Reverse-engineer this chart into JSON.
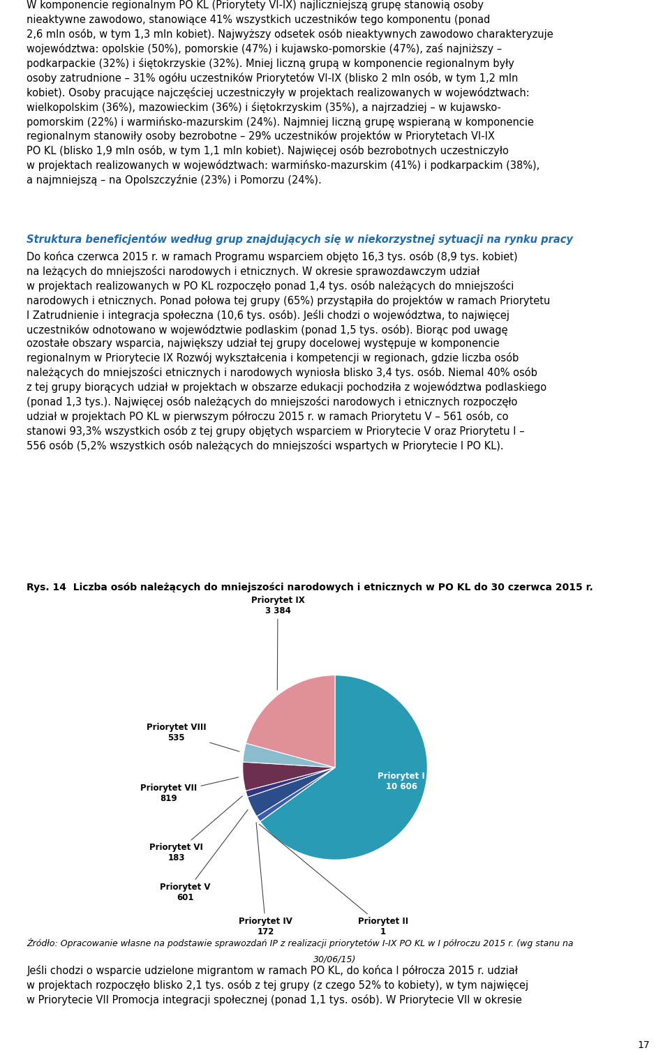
{
  "title": "Rys. 14  Liczba osób należących do mniejszości narodowych i etnicznych w PO KL do 30 czerwca 2015 r.",
  "source_line1": "Źródło: Opracowanie własne na podstawie sprawozdań IP z realizacji priorytetów I-IX PO KL w I półroczu 2015 r. (wg stanu na",
  "source_line2": "30/06/15)",
  "slices": [
    {
      "label": "Priorytet I",
      "value": 10606,
      "color": "#2A9BB5"
    },
    {
      "label": "Priorytet II",
      "value": 1,
      "color": "#D9611E"
    },
    {
      "label": "Priorytet IV",
      "value": 172,
      "color": "#3A5BAF"
    },
    {
      "label": "Priorytet V",
      "value": 601,
      "color": "#2B4D8A"
    },
    {
      "label": "Priorytet VI",
      "value": 183,
      "color": "#353480"
    },
    {
      "label": "Priorytet VII",
      "value": 819,
      "color": "#6B3050"
    },
    {
      "label": "Priorytet VIII",
      "value": 535,
      "color": "#8BBCCE"
    },
    {
      "label": "Priorytet IX",
      "value": 3384,
      "color": "#E09098"
    }
  ],
  "para1": "W komponencie regionalnym PO KL (Priorytety VI-IX) najliczniejszą grupę stanowią osoby\nnieaktywne zawodowo, stanowiące 41% wszystkich uczestników tego komponentu (ponad\n2,6 mln osób, w tym 1,3 mln kobiet). Najwyższy odsetek osób nieaktywnych zawodowo charakteryzuje\nwojewództwa: opolskie (50%), pomorskie (47%) i kujawsko-pomorskie (47%), zaś najniższy –\npodkarpackie (32%) i śiętokrzyskie (32%). Mniej liczną grupą w komponencie regionalnym były\nosoby zatrudnione – 31% ogółu uczestników Priorytetów VI-IX (blisko 2 mln osób, w tym 1,2 mln\nkobiet). Osoby pracujące najczęściej uczestniczyły w projektach realizowanych w województwach:\nwielkopolskim (36%), mazowieckim (36%) i śiętokrzyskim (35%), a najrzadziej – w kujawsko-\npomorskim (22%) i warmińsko-mazurskim (24%). Najmniej liczną grupę wspieraną w komponencie\nregionalnym stanowiły osoby bezrobotne – 29% uczestników projektów w Priorytetach VI-IX\nPO KL (blisko 1,9 mln osób, w tym 1,1 mln kobiet). Najwięcej osób bezrobotnych uczestniczyło\nw projektach realizowanych w województwach: warmińsko-mazurskim (41%) i podkarpackim (38%),\na najmniejszą – na Opolszczyźnie (23%) i Pomorzu (24%).",
  "section_title": "Struktura beneficjentów według grup znajdujących się w niekorzystnej sytuacji na rynku pracy",
  "para2": "Do końca czerwca 2015 r. w ramach Programu wsparciem objęto 16,3 tys. osób (8,9 tys. kobiet)\nna leżących do mniejszości narodowych i etnicznych. W okresie sprawozdawczym udział\nw projektach realizowanych w PO KL rozpoczęło ponad 1,4 tys. osób należących do mniejszości\nnarodowych i etnicznych. Ponad połowa tej grupy (65%) przystąpiła do projektów w ramach Priorytetu\nI Zatrudnienie i integracja społeczna (10,6 tys. osób). Jeśli chodzi o województwa, to najwięcej\nuczestników odnotowano w województwie podlaskim (ponad 1,5 tys. osób). Biorąc pod uwagę\nozostałe obszary wsparcia, największy udział tej grupy docelowej występuje w komponencie\nregionalnym w Priorytecie IX Rozwój wykształcenia i kompetencji w regionach, gdzie liczba osób\nnależących do mniejszości etnicznych i narodowych wyniosła blisko 3,4 tys. osób. Niemal 40% osób\nz tej grupy biorących udział w projektach w obszarze edukacji pochodziła z województwa podlaskiego\n(ponad 1,3 tys.). Najwięcej osób należących do mniejszości narodowych i etnicznych rozpoczęło\nudział w projektach PO KL w pierwszym półroczu 2015 r. w ramach Priorytetu V – 561 osób, co\nstanowi 93,3% wszystkich osób z tej grupy objętych wsparciem w Priorytecie V oraz Priorytetu I –\n556 osób (5,2% wszystkich osób należących do mniejszości wspartych w Priorytecie I PO KL).",
  "para3": "Jeśli chodzi o wsparcie udzielone migrantom w ramach PO KL, do końca I półrocza 2015 r. udział\nw projektach rozpoczęło blisko 2,1 tys. osób z tej grupy (z czego 52% to kobiety), w tym najwięcej\nw Priorytecie VII Promocja integracji społecznej (ponad 1,1 tys. osób). W Priorytecie VII w okresie",
  "page_number": "17",
  "bg": "#FFFFFF",
  "label_fontsize": 8.5,
  "title_fontsize": 10.0,
  "body_fontsize": 10.5,
  "source_fontsize": 9.0
}
